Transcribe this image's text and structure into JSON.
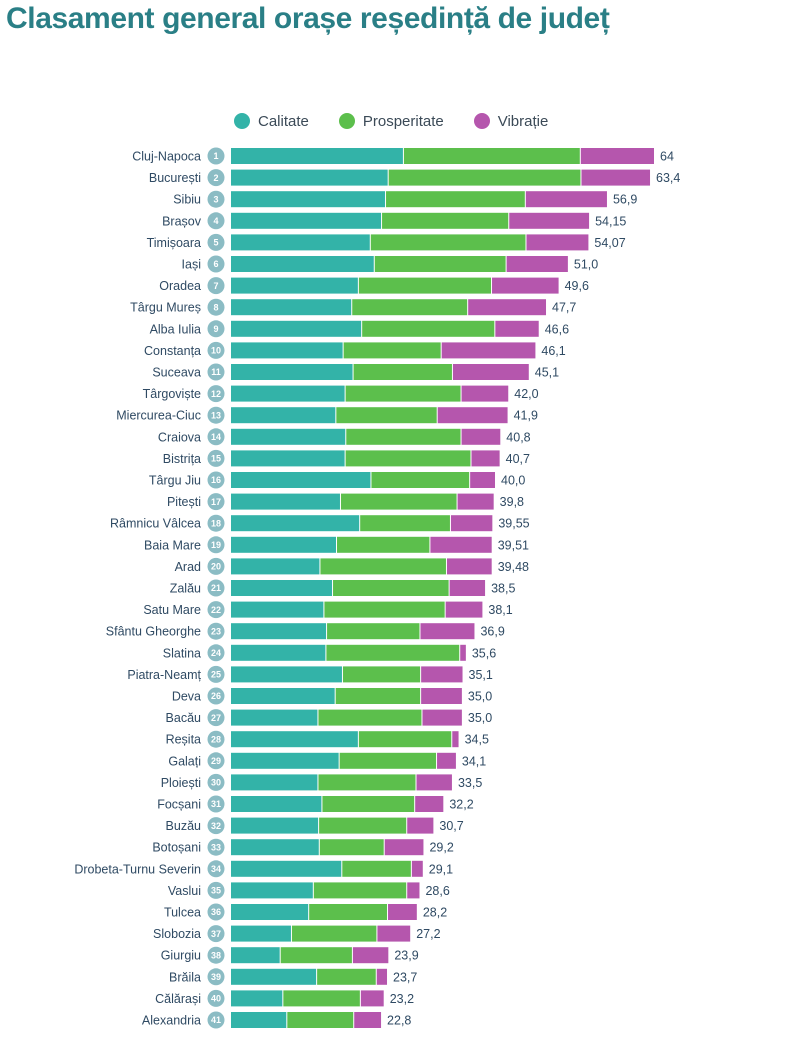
{
  "title": "Clasament general orașe reședință de județ",
  "colors": {
    "calitate": "#33b3a8",
    "prosperitate": "#5cbf4c",
    "vibratie": "#b556ad",
    "rank_circle": "#8bbcc4"
  },
  "chart_data": {
    "type": "bar",
    "orientation": "horizontal",
    "stacked": true,
    "legend": "top",
    "series": [
      {
        "name": "Calitate",
        "values": [
          26.1,
          23.8,
          23.4,
          22.8,
          21.1,
          21.7,
          19.3,
          18.3,
          19.8,
          17.0,
          18.5,
          17.3,
          15.9,
          17.4,
          17.3,
          21.2,
          16.6,
          19.5,
          16.0,
          13.5,
          15.4,
          14.1,
          14.5,
          14.4,
          16.9,
          15.8,
          13.2,
          19.3,
          16.4,
          13.2,
          13.8,
          13.3,
          13.4,
          16.8,
          12.5,
          11.8,
          9.2,
          7.5,
          13.0,
          7.9,
          8.5
        ]
      },
      {
        "name": "Prosperitate",
        "values": [
          26.7,
          29.1,
          21.1,
          19.2,
          23.5,
          19.9,
          20.1,
          17.5,
          20.1,
          14.8,
          15.0,
          17.5,
          15.3,
          17.4,
          19.0,
          14.9,
          17.6,
          13.7,
          14.1,
          19.1,
          17.6,
          18.3,
          14.1,
          20.2,
          11.8,
          12.9,
          15.7,
          14.1,
          14.7,
          14.8,
          14.0,
          13.3,
          9.8,
          10.5,
          14.1,
          11.9,
          12.9,
          10.9,
          9.0,
          11.7,
          10.1
        ]
      },
      {
        "name": "Vibrație",
        "values": [
          11.2,
          10.5,
          12.4,
          12.2,
          9.5,
          9.4,
          10.2,
          11.9,
          6.7,
          14.3,
          11.6,
          7.2,
          10.7,
          6.0,
          4.4,
          3.9,
          5.6,
          6.4,
          9.4,
          6.9,
          5.5,
          5.7,
          8.3,
          1.0,
          6.4,
          6.3,
          6.1,
          1.1,
          3.0,
          5.5,
          4.4,
          4.1,
          6.0,
          1.8,
          2.0,
          4.5,
          5.1,
          5.5,
          1.7,
          3.6,
          4.2
        ]
      }
    ],
    "categories": [
      "Cluj-Napoca",
      "București",
      "Sibiu",
      "Brașov",
      "Timișoara",
      "Iași",
      "Oradea",
      "Târgu Mureș",
      "Alba Iulia",
      "Constanța",
      "Suceava",
      "Târgoviște",
      "Miercurea-Ciuc",
      "Craiova",
      "Bistrița",
      "Târgu Jiu",
      "Pitești",
      "Râmnicu Vâlcea",
      "Baia Mare",
      "Arad",
      "Zalău",
      "Satu Mare",
      "Sfântu Gheorghe",
      "Slatina",
      "Piatra-Neamț",
      "Deva",
      "Bacău",
      "Reșita",
      "Galați",
      "Ploiești",
      "Focșani",
      "Buzău",
      "Botoșani",
      "Drobeta-Turnu Severin",
      "Vaslui",
      "Tulcea",
      "Slobozia",
      "Giurgiu",
      "Brăila",
      "Călărași",
      "Alexandria"
    ],
    "ranks": [
      "1",
      "2",
      "3",
      "4",
      "5",
      "6",
      "7",
      "8",
      "9",
      "10",
      "11",
      "12",
      "13",
      "14",
      "15",
      "16",
      "17",
      "18",
      "19",
      "20",
      "21",
      "22",
      "23",
      "24",
      "25",
      "26",
      "27",
      "28",
      "29",
      "30",
      "31",
      "32",
      "33",
      "34",
      "35",
      "36",
      "37",
      "38",
      "39",
      "40",
      "41"
    ],
    "totals": [
      64.0,
      63.4,
      56.9,
      54.15,
      54.07,
      51.0,
      49.6,
      47.7,
      46.6,
      46.1,
      45.1,
      42.0,
      41.9,
      40.8,
      40.7,
      40.0,
      39.8,
      39.55,
      39.51,
      39.48,
      38.5,
      38.1,
      36.9,
      35.6,
      35.1,
      35.0,
      35.0,
      34.5,
      34.1,
      33.5,
      32.2,
      30.7,
      29.2,
      29.1,
      28.6,
      28.2,
      27.2,
      23.9,
      23.7,
      23.2,
      22.8
    ],
    "value_labels": [
      "64",
      "63,4",
      "56,9",
      "54,15",
      "54,07",
      "51,0",
      "49,6",
      "47,7",
      "46,6",
      "46,1",
      "45,1",
      "42,0",
      "41,9",
      "40,8",
      "40,7",
      "40,0",
      "39,8",
      "39,55",
      "39,51",
      "39,48",
      "38,5",
      "38,1",
      "36,9",
      "35,6",
      "35,1",
      "35,0",
      "35,0",
      "34,5",
      "34,1",
      "33,5",
      "32,2",
      "30,7",
      "29,2",
      "29,1",
      "28,6",
      "28,2",
      "27,2",
      "23,9",
      "23,7",
      "23,2",
      "22,8"
    ],
    "xlim": [
      0,
      64
    ]
  }
}
